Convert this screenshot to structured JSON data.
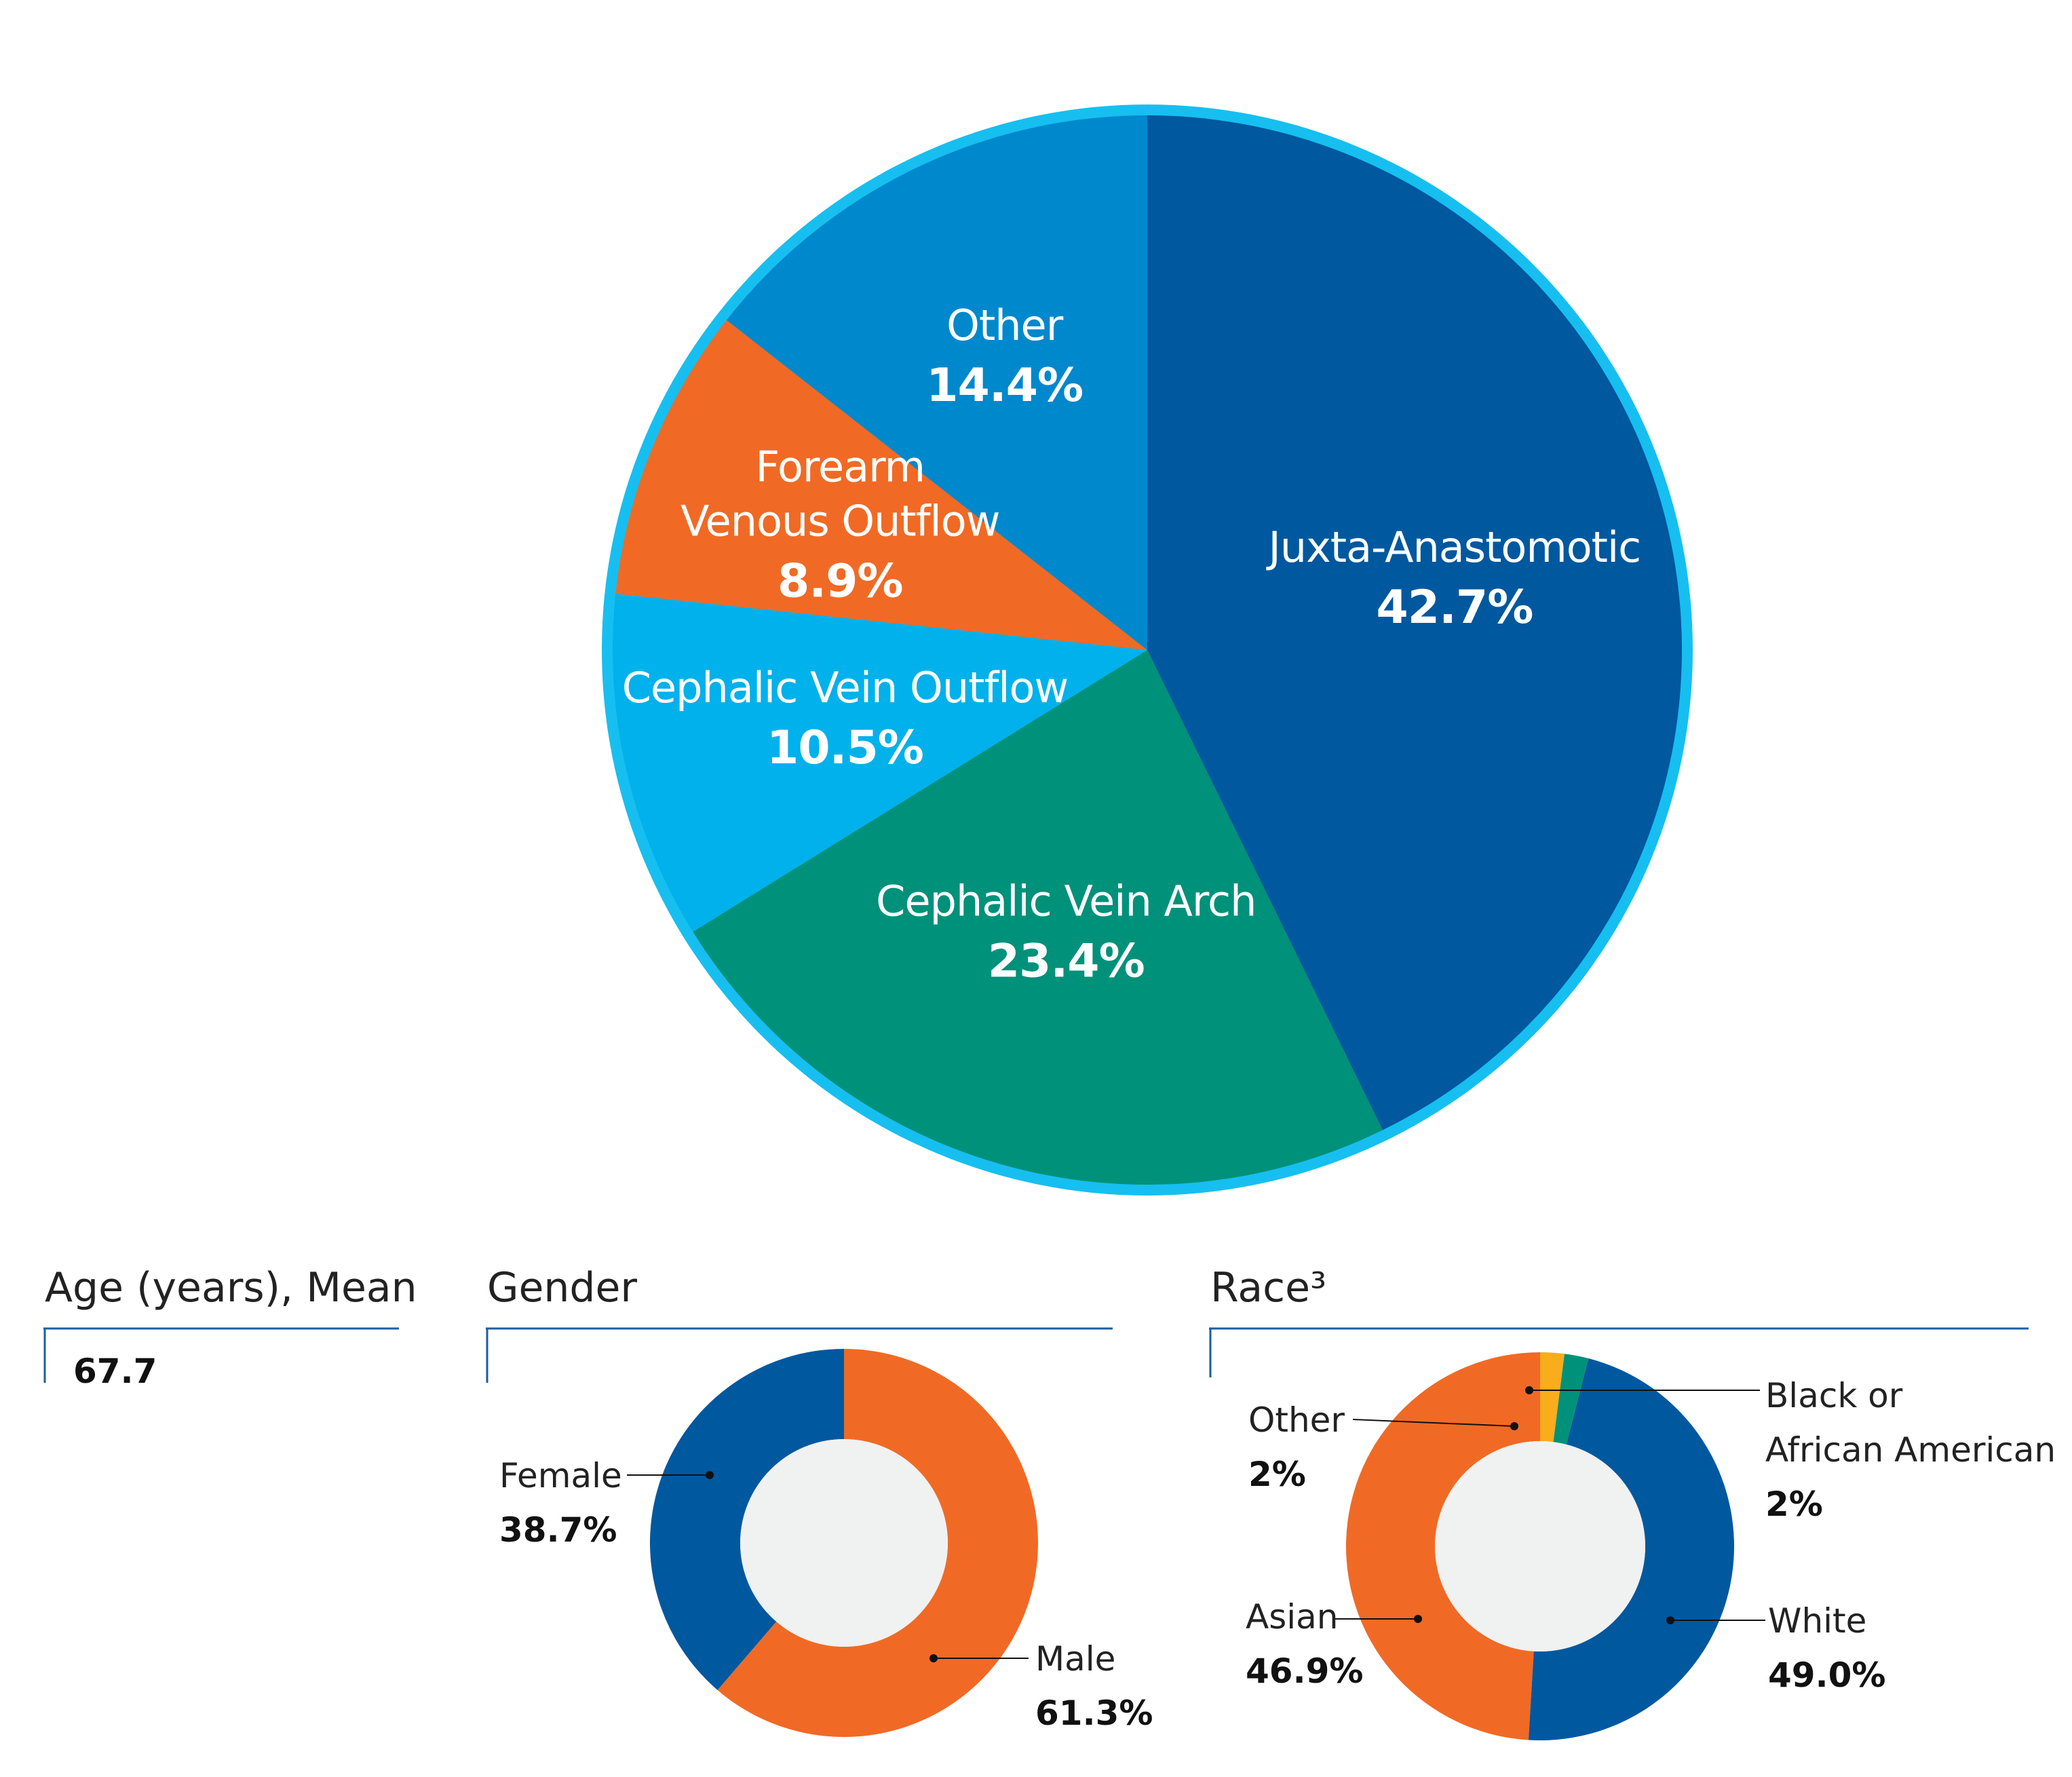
{
  "chart_data": [
    {
      "type": "pie",
      "categories": [
        "Juxta-Anastomotic",
        "Cephalic Vein Arch",
        "Cephalic Vein Outflow",
        "Forearm Venous Outflow",
        "Other"
      ],
      "values": [
        42.7,
        23.4,
        10.5,
        8.9,
        14.4
      ],
      "value_labels": [
        "42.7%",
        "23.4%",
        "10.5%",
        "8.9%",
        "14.4%"
      ],
      "colors": [
        "#00589f",
        "#00917a",
        "#00b1eb",
        "#f06a25",
        "#0088cd"
      ],
      "rim_color": "#16bff0"
    },
    {
      "type": "pie",
      "title": "Gender",
      "categories": [
        "Male",
        "Female"
      ],
      "values": [
        61.3,
        38.7
      ],
      "value_labels": [
        "61.3%",
        "38.7%"
      ],
      "colors": [
        "#f06a25",
        "#00589f"
      ],
      "hole_color": "#f0f1f1"
    },
    {
      "type": "pie",
      "title": "Race³",
      "categories": [
        "White",
        "Asian",
        "Other",
        "Black or African American"
      ],
      "label_lines": [
        [
          "White"
        ],
        [
          "Asian"
        ],
        [
          "Other"
        ],
        [
          "Black or",
          "African American"
        ]
      ],
      "values": [
        49.0,
        46.9,
        2,
        2
      ],
      "value_labels": [
        "49.0%",
        "46.9%",
        "2%",
        "2%"
      ],
      "colors": [
        "#f06a25",
        "#00589f",
        "#00917a",
        "#f9ad1d"
      ],
      "hole_color": "#f0f1f1"
    }
  ],
  "age": {
    "title": "Age (years), Mean",
    "value": "67.7"
  },
  "rule_color": "#1b5da0"
}
